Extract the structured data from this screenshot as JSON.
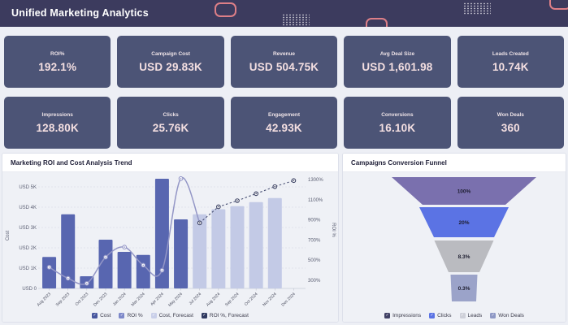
{
  "header": {
    "title": "Unified Marketing Analytics"
  },
  "kpi_cards": [
    {
      "label": "ROI%",
      "value": "192.1%"
    },
    {
      "label": "Campaign Cost",
      "value": "USD 29.83K"
    },
    {
      "label": "Revenue",
      "value": "USD 504.75K"
    },
    {
      "label": "Avg Deal Size",
      "value": "USD 1,601.98"
    },
    {
      "label": "Leads Created",
      "value": "10.74K"
    },
    {
      "label": "Impressions",
      "value": "128.80K"
    },
    {
      "label": "Clicks",
      "value": "25.76K"
    },
    {
      "label": "Engagement",
      "value": "42.93K"
    },
    {
      "label": "Conversions",
      "value": "16.10K"
    },
    {
      "label": "Won Deals",
      "value": "360"
    }
  ],
  "chart_data": [
    {
      "type": "bar",
      "subtype": "bar+line combo, dual axis",
      "title": "Marketing ROI and Cost Analysis Trend",
      "categories": [
        "Aug 2023",
        "Sep 2023",
        "Oct 2023",
        "Dec 2023",
        "Jan 2024",
        "Mar 2024",
        "Apr 2024",
        "May 2024",
        "Jul 2024",
        "Aug 2024",
        "Sep 2024",
        "Oct 2024",
        "Nov 2024",
        "Dec 2024"
      ],
      "y_axis_left": {
        "name": "Cost",
        "tick_labels": [
          "USD 5K",
          "USD 4K",
          "USD 3K",
          "USD 2K",
          "USD 1K",
          "USD 0"
        ],
        "tick_values": [
          5000,
          4000,
          3000,
          2000,
          1000,
          0
        ],
        "range": [
          0,
          5000
        ]
      },
      "y_axis_right": {
        "name": "ROI %",
        "tick_labels": [
          "1300%",
          "1100%",
          "900%",
          "700%",
          "500%",
          "300%"
        ],
        "tick_values": [
          1300,
          1100,
          900,
          700,
          500,
          300
        ],
        "range": [
          300,
          1300
        ]
      },
      "grid": true,
      "legend_position": "bottom",
      "series": [
        {
          "name": "Cost",
          "type": "bar",
          "axis": "left",
          "color": "#5866b0",
          "values": [
            1550,
            3650,
            600,
            2400,
            1800,
            1650,
            5400,
            3400,
            null,
            null,
            null,
            null,
            null,
            null
          ]
        },
        {
          "name": "Cost, Forecast",
          "type": "bar",
          "axis": "left",
          "color": "#c3cae6",
          "values": [
            null,
            null,
            null,
            null,
            null,
            null,
            null,
            null,
            3650,
            3900,
            4050,
            4250,
            4450,
            null
          ]
        },
        {
          "name": "ROI %",
          "type": "line",
          "axis": "right",
          "color": "#9396c6",
          "dashed": false,
          "values": [
            430,
            320,
            270,
            530,
            630,
            450,
            400,
            1310,
            870,
            null,
            null,
            null,
            null,
            null
          ]
        },
        {
          "name": "ROI %, Forecast",
          "type": "line",
          "axis": "right",
          "color": "#4d5477",
          "dashed": true,
          "values": [
            null,
            null,
            null,
            null,
            null,
            null,
            null,
            null,
            870,
            1030,
            1090,
            1160,
            1230,
            1290
          ]
        }
      ],
      "legend": [
        {
          "label": "Cost",
          "color": "#47569e"
        },
        {
          "label": "ROI %",
          "color": "#7d88c9"
        },
        {
          "label": "Cost, Forecast",
          "color": "#c9cfe9"
        },
        {
          "label": "ROI %, Forecast",
          "color": "#2f3960"
        }
      ]
    },
    {
      "type": "pie",
      "subtype": "funnel",
      "title": "Campaigns Conversion Funnel",
      "stages": [
        {
          "name": "Impressions",
          "label": "100%",
          "value": 100,
          "color": "#7a70ae"
        },
        {
          "name": "Clicks",
          "label": "20%",
          "value": 20,
          "color": "#5b73e4"
        },
        {
          "name": "Leads",
          "label": "8.3%",
          "value": 8.3,
          "color": "#babbc0"
        },
        {
          "name": "Won Deals",
          "label": "0.3%",
          "value": 0.3,
          "color": "#9ba3c9"
        }
      ],
      "legend_position": "bottom",
      "legend": [
        {
          "label": "Impressions",
          "color": "#414165"
        },
        {
          "label": "Clicks",
          "color": "#5b73e4"
        },
        {
          "label": "Leads",
          "color": "#ced0d9"
        },
        {
          "label": "Won Deals",
          "color": "#8e98c5"
        }
      ]
    }
  ],
  "colors": {
    "header_bg": "#3c3b5e",
    "accent_pink": "#dd7f87",
    "card_bg": "#4c5476",
    "page_bg": "#edeff5"
  }
}
